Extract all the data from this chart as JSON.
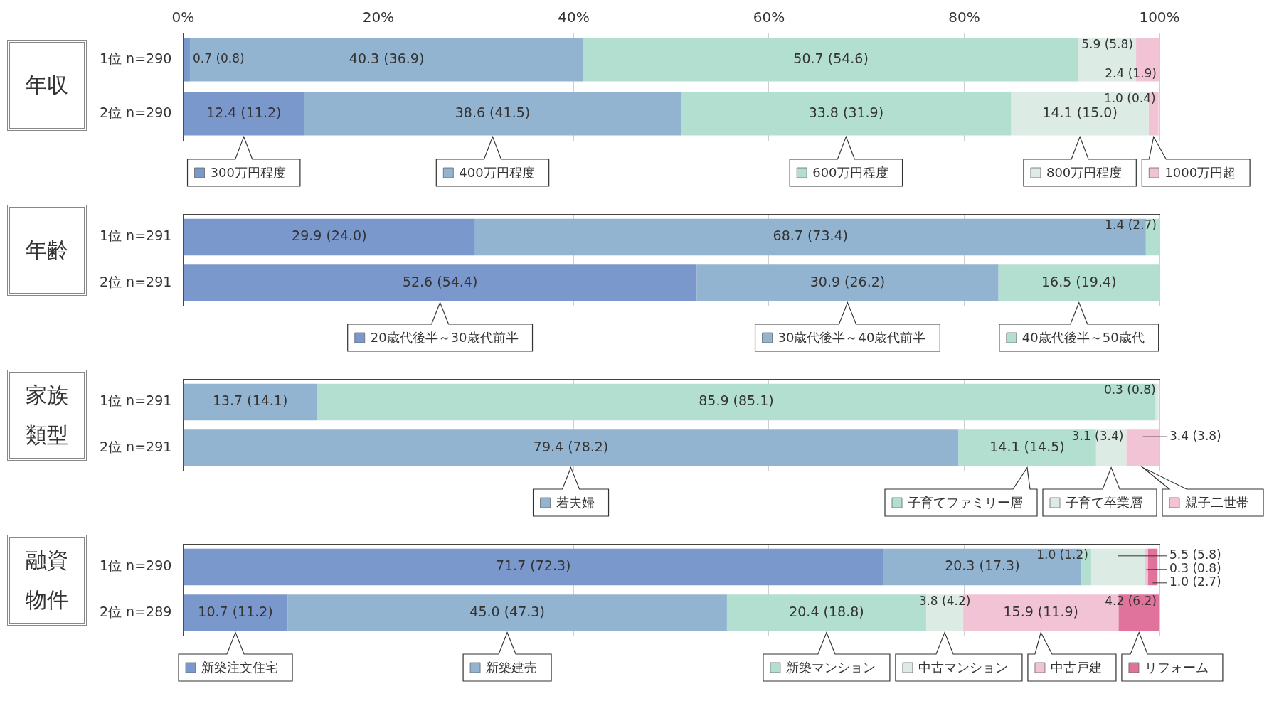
{
  "chart_data": [
    {
      "type": "bar",
      "title": "年収",
      "legend": "bottom",
      "orientation": "horizontal",
      "stacked": true,
      "grid": "x",
      "categories": [
        "1位 n=290",
        "2位 n=290"
      ],
      "xlim": [
        0,
        100
      ],
      "xticks": [
        {
          "value": 0,
          "label": "0%"
        },
        {
          "value": 20,
          "label": "20%"
        },
        {
          "value": 40,
          "label": "40%"
        },
        {
          "value": 60,
          "label": "60%"
        },
        {
          "value": 80,
          "label": "80%"
        },
        {
          "value": 100,
          "label": "100%"
        }
      ],
      "series": [
        {
          "name": "300万円程度",
          "color": "#7b98cc",
          "values": [
            0.7,
            12.4
          ],
          "value_labels": [
            "0.7 (0.8)",
            "12.4 (11.2)"
          ]
        },
        {
          "name": "400万円程度",
          "color": "#93b4d0",
          "values": [
            40.3,
            38.6
          ],
          "value_labels": [
            "40.3 (36.9)",
            "38.6 (41.5)"
          ]
        },
        {
          "name": "600万円程度",
          "color": "#b3dfd0",
          "values": [
            50.7,
            33.8
          ],
          "value_labels": [
            "50.7 (54.6)",
            "33.8 (31.9)"
          ]
        },
        {
          "name": "800万円程度",
          "color": "#dcebe3",
          "values": [
            5.9,
            14.1
          ],
          "value_labels": [
            "5.9 (5.8)",
            "14.1 (15.0)"
          ]
        },
        {
          "name": "1000万円超",
          "color": "#f1c3d4",
          "values": [
            2.4,
            1.0
          ],
          "value_labels": [
            "2.4 (1.9)",
            "1.0 (0.4)"
          ]
        }
      ]
    },
    {
      "type": "bar",
      "title": "年齢",
      "legend": "bottom",
      "orientation": "horizontal",
      "stacked": true,
      "grid": "x",
      "tick_labels": "y",
      "categories": [
        "1位 n=291",
        "2位 n=291"
      ],
      "xlim": [
        0,
        100
      ],
      "xticks": [
        {
          "value": 0,
          "label": null
        },
        {
          "value": 20,
          "label": null
        },
        {
          "value": 40,
          "label": null
        },
        {
          "value": 60,
          "label": null
        },
        {
          "value": 80,
          "label": null
        },
        {
          "value": 100,
          "label": null
        }
      ],
      "series": [
        {
          "name": "20歳代後半～30歳代前半",
          "color": "#7b98cc",
          "values": [
            29.9,
            52.6
          ],
          "value_labels": [
            "29.9 (24.0)",
            "52.6 (54.4)"
          ]
        },
        {
          "name": "30歳代後半～40歳代前半",
          "color": "#93b4d0",
          "values": [
            68.7,
            30.9
          ],
          "value_labels": [
            "68.7 (73.4)",
            "30.9 (26.2)"
          ]
        },
        {
          "name": "40歳代後半～50歳代",
          "color": "#b3dfd0",
          "values": [
            1.4,
            16.5
          ],
          "value_labels": [
            "1.4 (2.7)",
            "16.5 (19.4)"
          ]
        }
      ]
    },
    {
      "type": "bar",
      "title": "家族類型",
      "legend": "bottom",
      "orientation": "horizontal",
      "stacked": true,
      "grid": "x",
      "tick_labels": "y",
      "categories": [
        "1位 n=291",
        "2位 n=291"
      ],
      "xlim": [
        0,
        100
      ],
      "xticks": [
        {
          "value": 0,
          "label": null
        },
        {
          "value": 20,
          "label": null
        },
        {
          "value": 40,
          "label": null
        },
        {
          "value": 60,
          "label": null
        },
        {
          "value": 80,
          "label": null
        },
        {
          "value": 100,
          "label": null
        }
      ],
      "series": [
        {
          "name": "若夫婦",
          "color": "#93b4d0",
          "values": [
            13.7,
            79.4
          ],
          "value_labels": [
            "13.7 (14.1)",
            "79.4 (78.2)"
          ]
        },
        {
          "name": "子育てファミリー層",
          "color": "#b3dfd0",
          "values": [
            85.9,
            14.1
          ],
          "value_labels": [
            "85.9 (85.1)",
            "14.1 (14.5)"
          ]
        },
        {
          "name": "子育て卒業層",
          "color": "#dcebe3",
          "values": [
            0.3,
            3.1
          ],
          "value_labels": [
            "0.3 (0.8)",
            "3.1 (3.4)"
          ]
        },
        {
          "name": "親子二世帯",
          "color": "#f1c3d4",
          "values": [
            null,
            3.4
          ],
          "value_labels": [
            null,
            "3.4 (3.8)"
          ]
        }
      ]
    },
    {
      "type": "bar",
      "title": "融資物件",
      "legend": "bottom",
      "orientation": "horizontal",
      "stacked": true,
      "grid": "x",
      "tick_labels": "y",
      "categories": [
        "1位 n=290",
        "2位 n=289"
      ],
      "xlim": [
        0,
        100
      ],
      "xticks": [
        {
          "value": 0,
          "label": null
        },
        {
          "value": 20,
          "label": null
        },
        {
          "value": 40,
          "label": null
        },
        {
          "value": 60,
          "label": null
        },
        {
          "value": 80,
          "label": null
        },
        {
          "value": 100,
          "label": null
        }
      ],
      "series": [
        {
          "name": "新築注文住宅",
          "color": "#7b98cc",
          "values": [
            71.7,
            10.7
          ],
          "value_labels": [
            "71.7 (72.3)",
            "10.7 (11.2)"
          ]
        },
        {
          "name": "新築建売",
          "color": "#93b4d0",
          "values": [
            20.3,
            45.0
          ],
          "value_labels": [
            "20.3 (17.3)",
            "45.0 (47.3)"
          ]
        },
        {
          "name": "新築マンション",
          "color": "#b3dfd0",
          "values": [
            1.0,
            20.4
          ],
          "value_labels": [
            "1.0 (1.2)",
            "20.4 (18.8)"
          ]
        },
        {
          "name": "中古マンション",
          "color": "#dcebe3",
          "values": [
            5.5,
            3.8
          ],
          "value_labels": [
            "5.5 (5.8)",
            "3.8 (4.2)"
          ]
        },
        {
          "name": "中古戸建",
          "color": "#f1c3d4",
          "values": [
            0.3,
            15.9
          ],
          "value_labels": [
            "0.3 (0.8)",
            "15.9 (11.9)"
          ]
        },
        {
          "name": "リフォーム",
          "color": "#e0739c",
          "values": [
            1.0,
            4.2
          ],
          "value_labels": [
            "1.0 (2.7)",
            "4.2 (6.2)"
          ]
        }
      ]
    }
  ]
}
